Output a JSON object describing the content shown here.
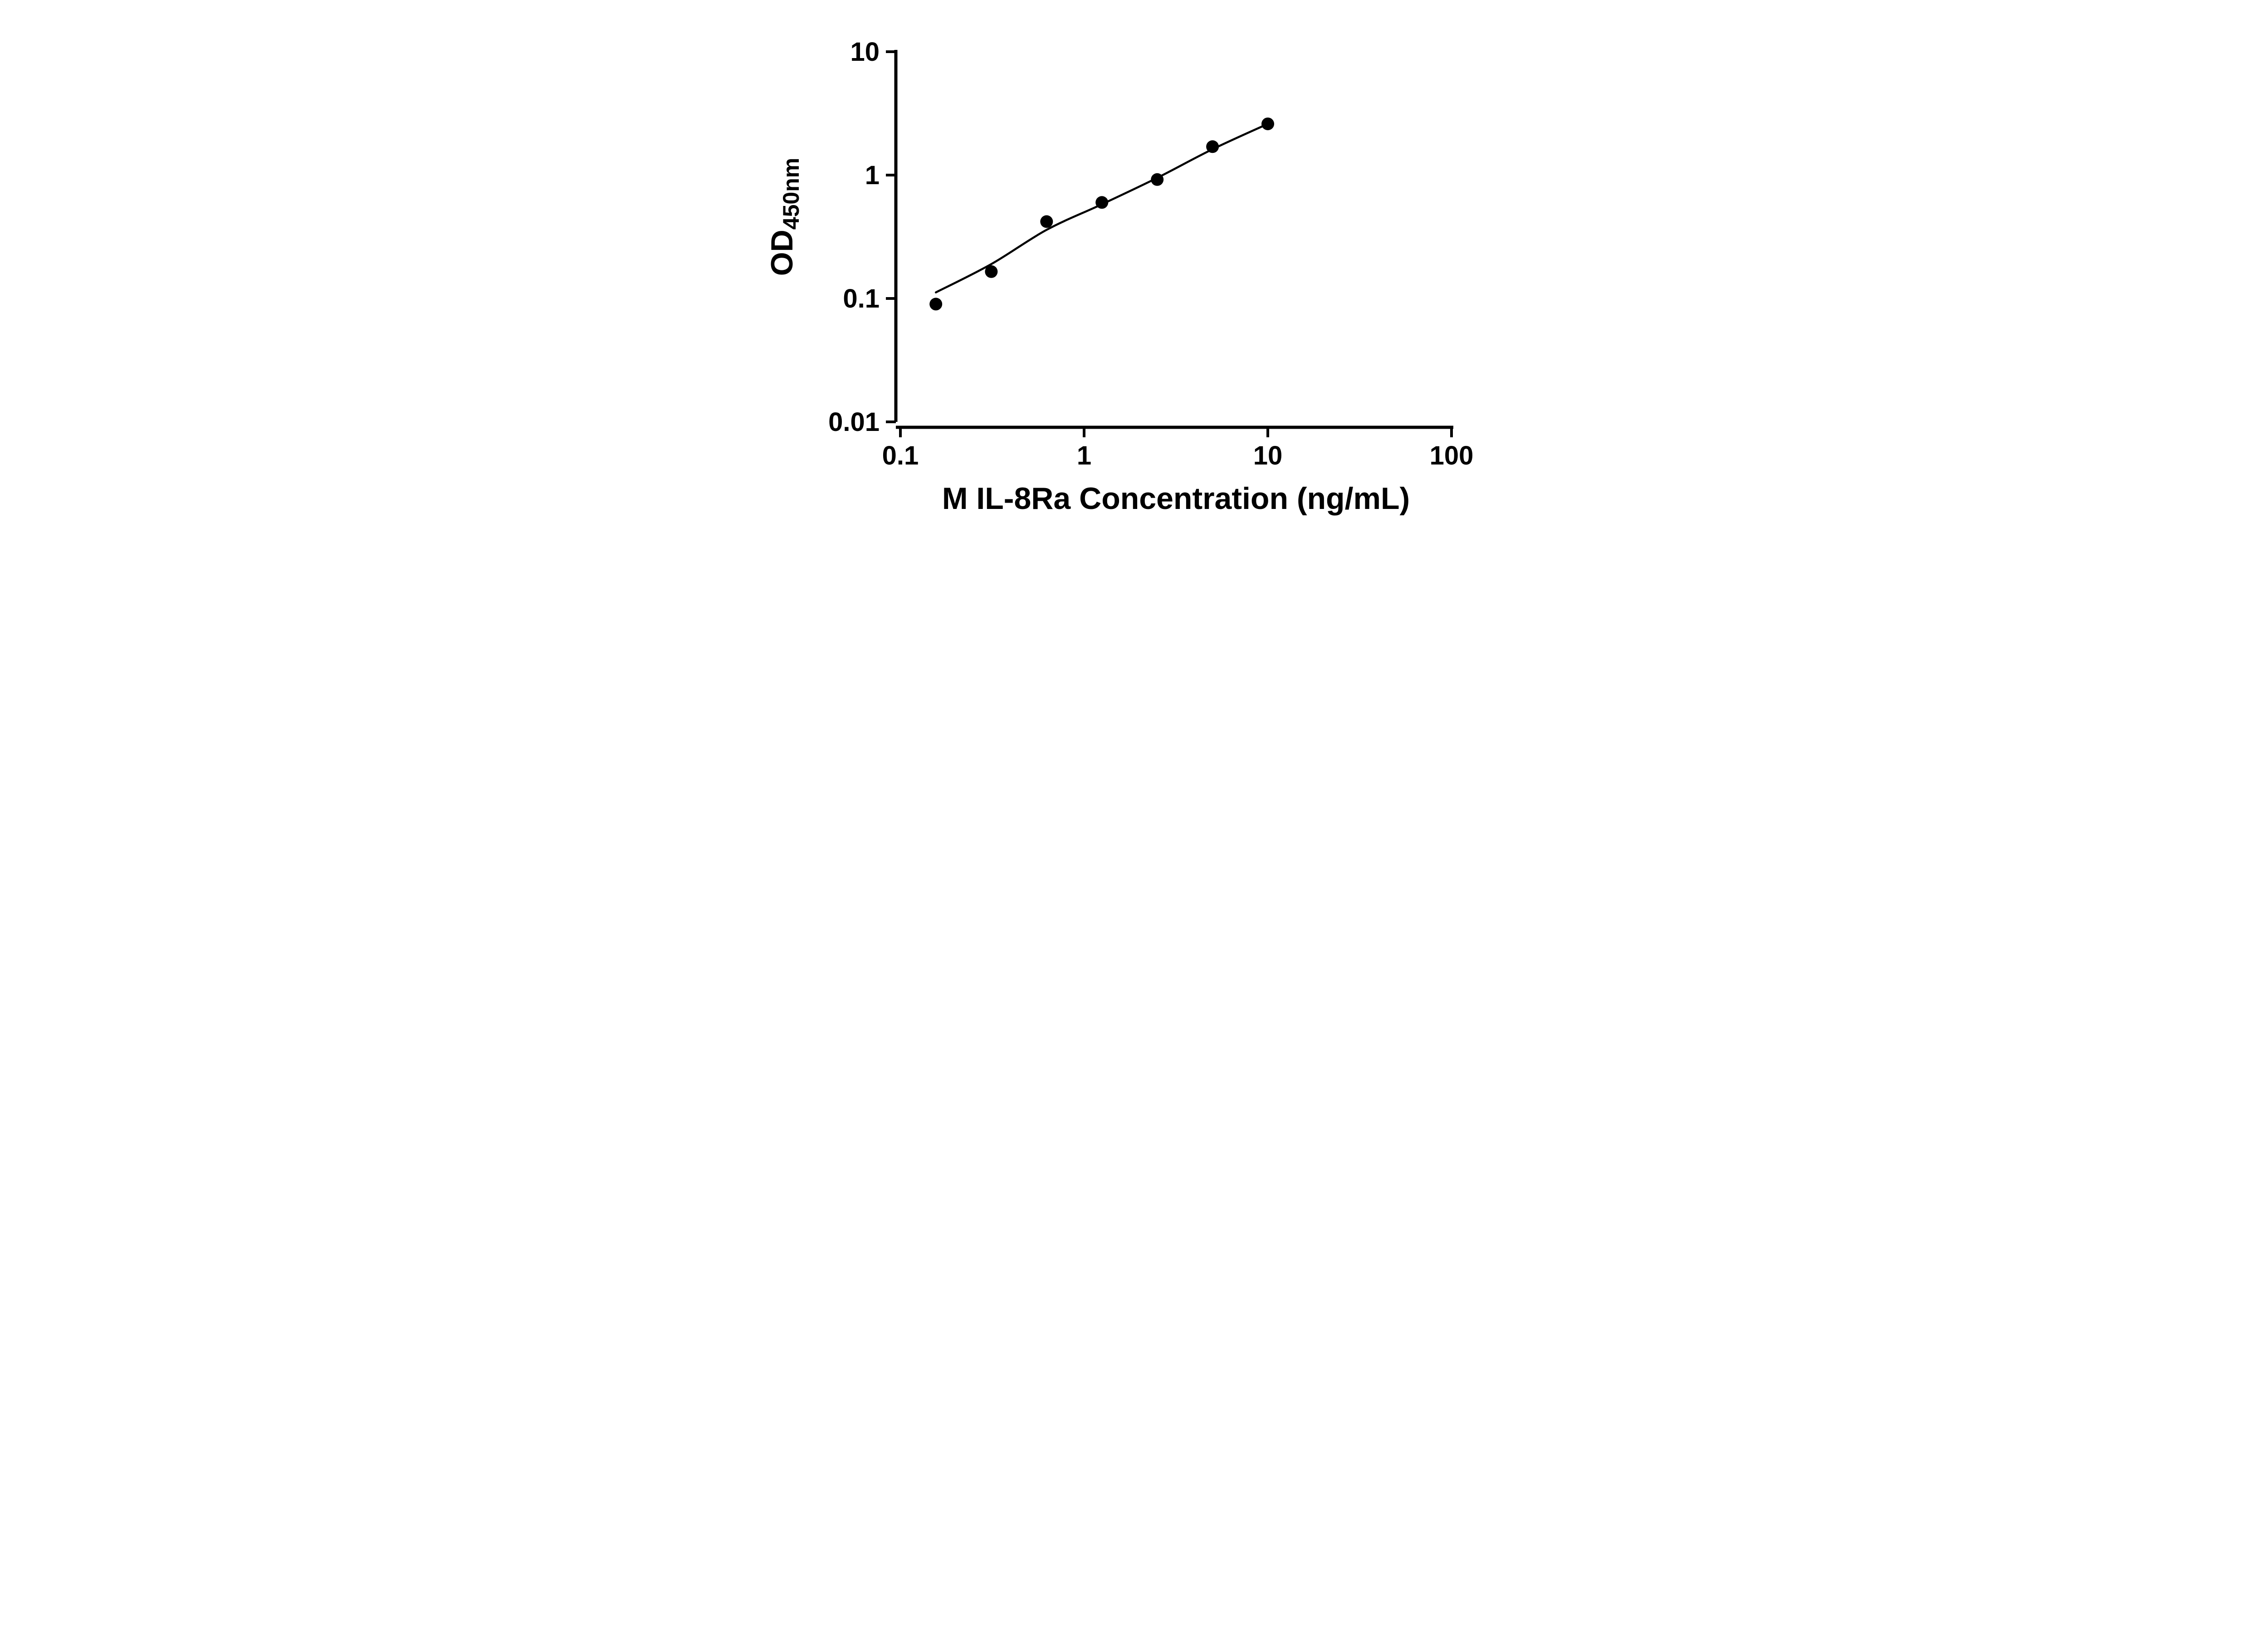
{
  "figure": {
    "background": "#ffffff"
  },
  "chart_data": {
    "type": "scatter",
    "title": "",
    "xlabel": "M IL-8Ra Concentration (ng/mL)",
    "ylabel": "OD",
    "ylabel_subscript": "450nm",
    "x_scale": "log",
    "y_scale": "log",
    "xlim": [
      0.1,
      100
    ],
    "ylim": [
      0.01,
      10
    ],
    "x_ticks": [
      "0.1",
      "1",
      "10",
      "100"
    ],
    "y_ticks": [
      "10",
      "1",
      "0.1",
      "0.01"
    ],
    "x": [
      0.156,
      0.3125,
      0.625,
      1.25,
      2.5,
      5,
      10
    ],
    "y": [
      0.09,
      0.165,
      0.42,
      0.6,
      0.92,
      1.7,
      2.6
    ],
    "fit_curve": {
      "x": [
        0.156,
        0.3125,
        0.625,
        1.25,
        2.5,
        5,
        10
      ],
      "y": [
        0.112,
        0.19,
        0.36,
        0.58,
        0.95,
        1.62,
        2.6
      ]
    },
    "marker_color": "#000000",
    "marker_radius": 14,
    "line_color": "#000000",
    "grid": false,
    "legend": false
  }
}
